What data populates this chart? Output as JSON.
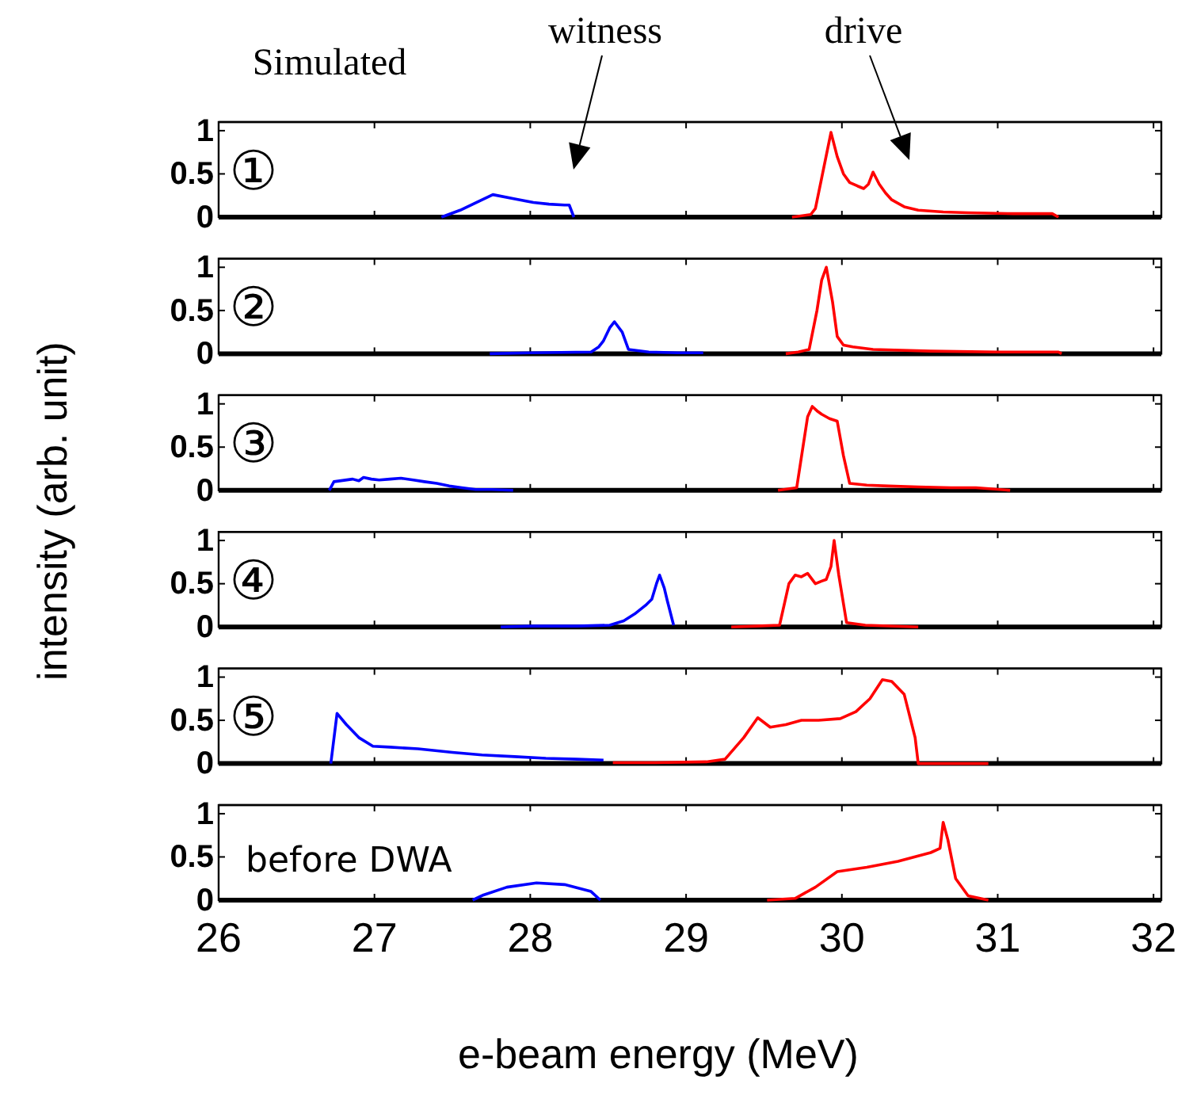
{
  "chart_data": [
    {
      "type": "line",
      "title": "Simulated",
      "ylabel": "intensity (arb. unit)",
      "xlim": [
        26,
        32.05
      ],
      "xticks": [
        26,
        27,
        28,
        29,
        30,
        31,
        32
      ],
      "ylim": [
        0,
        1.1
      ],
      "yticks": [
        0,
        0.5,
        1
      ],
      "tick_labels": "y",
      "annotations": [
        "①",
        "witness",
        "drive"
      ],
      "series": [
        {
          "color": "#0000ff",
          "x": [
            27.43,
            27.55,
            27.76,
            27.9,
            28.02,
            28.12,
            28.22,
            28.25,
            28.28
          ],
          "values": [
            0,
            0.08,
            0.26,
            0.21,
            0.17,
            0.15,
            0.14,
            0.14,
            0
          ]
        },
        {
          "color": "#ff0000",
          "x": [
            29.68,
            29.8,
            29.83,
            29.87,
            29.93,
            29.97,
            30.01,
            30.05,
            30.1,
            30.14,
            30.17,
            30.2,
            30.24,
            30.28,
            30.32,
            30.4,
            30.49,
            30.65,
            30.81,
            31.1,
            31.35,
            31.39
          ],
          "values": [
            0,
            0.03,
            0.1,
            0.45,
            0.98,
            0.7,
            0.5,
            0.4,
            0.36,
            0.33,
            0.38,
            0.52,
            0.38,
            0.28,
            0.2,
            0.12,
            0.08,
            0.06,
            0.05,
            0.04,
            0.04,
            0
          ]
        }
      ]
    },
    {
      "type": "line",
      "xlim": [
        26,
        32.05
      ],
      "xticks": [
        26,
        27,
        28,
        29,
        30,
        31,
        32
      ],
      "ylim": [
        0,
        1.1
      ],
      "yticks": [
        0,
        0.5,
        1
      ],
      "tick_labels": "y",
      "annotations": [
        "②"
      ],
      "series": [
        {
          "color": "#0000ff",
          "x": [
            27.74,
            28.0,
            28.39,
            28.44,
            28.47,
            28.51,
            28.54,
            28.59,
            28.63,
            28.76,
            28.95,
            29.11
          ],
          "values": [
            0,
            0.01,
            0.02,
            0.08,
            0.15,
            0.3,
            0.37,
            0.25,
            0.05,
            0.02,
            0.01,
            0.01
          ]
        },
        {
          "color": "#ff0000",
          "x": [
            29.64,
            29.72,
            29.79,
            29.84,
            29.87,
            29.9,
            29.94,
            29.97,
            30.01,
            30.07,
            30.2,
            30.57,
            31.0,
            31.39,
            31.41
          ],
          "values": [
            0,
            0.02,
            0.05,
            0.5,
            0.85,
            1.0,
            0.6,
            0.2,
            0.1,
            0.08,
            0.05,
            0.03,
            0.02,
            0.02,
            0
          ]
        }
      ]
    },
    {
      "type": "line",
      "xlim": [
        26,
        32.05
      ],
      "xticks": [
        26,
        27,
        28,
        29,
        30,
        31,
        32
      ],
      "ylim": [
        0,
        1.1
      ],
      "yticks": [
        0,
        0.5,
        1
      ],
      "tick_labels": "y",
      "annotations": [
        "③"
      ],
      "series": [
        {
          "color": "#0000ff",
          "x": [
            26.71,
            26.74,
            26.86,
            26.9,
            26.93,
            26.98,
            27.03,
            27.1,
            27.17,
            27.25,
            27.32,
            27.4,
            27.48,
            27.56,
            27.65,
            27.75,
            27.89
          ],
          "values": [
            0,
            0.1,
            0.13,
            0.11,
            0.15,
            0.13,
            0.12,
            0.13,
            0.14,
            0.12,
            0.1,
            0.08,
            0.05,
            0.03,
            0.01,
            0.01,
            0
          ]
        },
        {
          "color": "#ff0000",
          "x": [
            29.59,
            29.71,
            29.75,
            29.78,
            29.81,
            29.84,
            29.87,
            29.92,
            29.97,
            30.01,
            30.05,
            30.16,
            30.3,
            30.49,
            30.7,
            30.86,
            31.08
          ],
          "values": [
            0,
            0.03,
            0.5,
            0.85,
            0.97,
            0.92,
            0.88,
            0.83,
            0.8,
            0.4,
            0.08,
            0.06,
            0.05,
            0.04,
            0.03,
            0.03,
            0
          ]
        }
      ]
    },
    {
      "type": "line",
      "xlim": [
        26,
        32.05
      ],
      "xticks": [
        26,
        27,
        28,
        29,
        30,
        31,
        32
      ],
      "ylim": [
        0,
        1.1
      ],
      "yticks": [
        0,
        0.5,
        1
      ],
      "tick_labels": "y",
      "annotations": [
        "④"
      ],
      "series": [
        {
          "color": "#0000ff",
          "x": [
            27.81,
            28.0,
            28.3,
            28.51,
            28.6,
            28.67,
            28.74,
            28.78,
            28.81,
            28.83,
            28.86,
            28.88,
            28.92
          ],
          "values": [
            0,
            0.01,
            0.01,
            0.02,
            0.07,
            0.15,
            0.25,
            0.32,
            0.5,
            0.6,
            0.45,
            0.3,
            0.02
          ]
        },
        {
          "color": "#ff0000",
          "x": [
            29.29,
            29.45,
            29.6,
            29.66,
            29.7,
            29.74,
            29.78,
            29.83,
            29.87,
            29.9,
            29.93,
            29.95,
            29.98,
            30.03,
            30.15,
            30.49
          ],
          "values": [
            0,
            0.01,
            0.02,
            0.5,
            0.6,
            0.58,
            0.62,
            0.5,
            0.53,
            0.55,
            0.7,
            1.0,
            0.6,
            0.05,
            0.02,
            0
          ]
        }
      ]
    },
    {
      "type": "line",
      "xlim": [
        26,
        32.05
      ],
      "xticks": [
        26,
        27,
        28,
        29,
        30,
        31,
        32
      ],
      "ylim": [
        0,
        1.1
      ],
      "yticks": [
        0,
        0.5,
        1
      ],
      "tick_labels": "y",
      "annotations": [
        "⑤"
      ],
      "series": [
        {
          "color": "#0000ff",
          "x": [
            26.72,
            26.76,
            26.82,
            26.9,
            26.99,
            27.1,
            27.28,
            27.5,
            27.69,
            27.9,
            28.1,
            28.3,
            28.47
          ],
          "values": [
            0,
            0.58,
            0.45,
            0.3,
            0.2,
            0.19,
            0.17,
            0.13,
            0.1,
            0.08,
            0.06,
            0.05,
            0.04
          ]
        },
        {
          "color": "#ff0000",
          "x": [
            28.53,
            28.8,
            29.13,
            29.25,
            29.37,
            29.46,
            29.54,
            29.64,
            29.74,
            29.85,
            29.99,
            30.09,
            30.18,
            30.26,
            30.32,
            30.4,
            30.47,
            30.49,
            30.7,
            30.94
          ],
          "values": [
            0.01,
            0.01,
            0.02,
            0.05,
            0.3,
            0.53,
            0.42,
            0.45,
            0.5,
            0.5,
            0.52,
            0.6,
            0.75,
            0.97,
            0.95,
            0.8,
            0.3,
            0,
            0,
            0
          ]
        }
      ]
    },
    {
      "type": "line",
      "xlabel": "e-beam energy (MeV)",
      "xlim": [
        26,
        32.05
      ],
      "xticks": [
        26,
        27,
        28,
        29,
        30,
        31,
        32
      ],
      "ylim": [
        0,
        1.1
      ],
      "yticks": [
        0,
        0.5,
        1
      ],
      "annotations": [
        "before DWA"
      ],
      "series": [
        {
          "color": "#0000ff",
          "x": [
            27.63,
            27.7,
            27.85,
            28.04,
            28.22,
            28.39,
            28.45
          ],
          "values": [
            0,
            0.06,
            0.15,
            0.2,
            0.18,
            0.1,
            0
          ]
        },
        {
          "color": "#ff0000",
          "x": [
            29.52,
            29.7,
            29.83,
            29.97,
            30.16,
            30.36,
            30.57,
            30.63,
            30.65,
            30.68,
            30.73,
            30.81,
            30.94
          ],
          "values": [
            0,
            0.02,
            0.15,
            0.33,
            0.38,
            0.45,
            0.55,
            0.6,
            0.9,
            0.7,
            0.25,
            0.05,
            0
          ]
        }
      ]
    }
  ]
}
